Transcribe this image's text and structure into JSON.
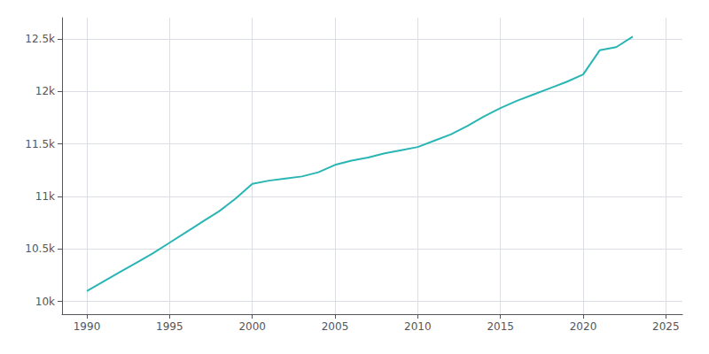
{
  "chart_data": {
    "type": "line",
    "x": [
      1990,
      1991,
      1992,
      1993,
      1994,
      1995,
      1996,
      1997,
      1998,
      1999,
      2000,
      2001,
      2002,
      2003,
      2004,
      2005,
      2006,
      2007,
      2008,
      2009,
      2010,
      2011,
      2012,
      2013,
      2014,
      2015,
      2016,
      2017,
      2018,
      2019,
      2020,
      2021,
      2022,
      2023
    ],
    "values": [
      10100,
      10190,
      10280,
      10370,
      10460,
      10560,
      10660,
      10760,
      10860,
      10980,
      11120,
      11150,
      11170,
      11190,
      11230,
      11300,
      11340,
      11370,
      11410,
      11440,
      11470,
      11530,
      11590,
      11670,
      11760,
      11840,
      11910,
      11970,
      12030,
      12090,
      12160,
      12390,
      12420,
      12520
    ],
    "color": "#2ab5b5",
    "xlim": [
      1988.5,
      2026
    ],
    "ylim": [
      9880,
      12700
    ],
    "xticks": [
      1990,
      1995,
      2000,
      2005,
      2010,
      2015,
      2020,
      2025
    ],
    "yticks": [
      {
        "value": 10000,
        "label": "10k"
      },
      {
        "value": 10500,
        "label": "10.5k"
      },
      {
        "value": 11000,
        "label": "11k"
      },
      {
        "value": 11500,
        "label": "11.5k"
      },
      {
        "value": 12000,
        "label": "12k"
      },
      {
        "value": 12500,
        "label": "12.5k"
      }
    ],
    "grid": true
  }
}
